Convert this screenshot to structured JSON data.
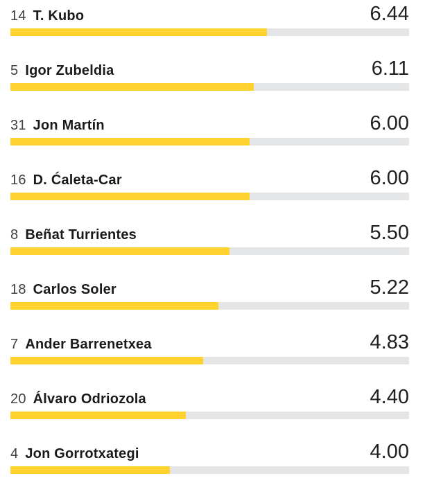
{
  "colors": {
    "bar_fill": "#ffd230",
    "bar_track": "#e4e5e7",
    "name_text": "#1a1a1a",
    "number_text": "#404040",
    "rating_text": "#202020",
    "background": "#ffffff"
  },
  "chart_data": {
    "type": "bar",
    "orientation": "horizontal",
    "title": "",
    "value_max": 10,
    "grid": false,
    "legend": false,
    "categories": [
      "T. Kubo",
      "Igor Zubeldia",
      "Jon Martín",
      "D. Ćaleta-Car",
      "Beñat Turrientes",
      "Carlos Soler",
      "Ander Barrenetxea",
      "Álvaro Odriozola",
      "Jon Gorrotxategi"
    ],
    "values": [
      6.44,
      6.11,
      6.0,
      6.0,
      5.5,
      5.22,
      4.83,
      4.4,
      4.0
    ],
    "players": [
      {
        "shirt_number": "14",
        "name": "T. Kubo",
        "rating": "6.44",
        "rating_value": 6.44
      },
      {
        "shirt_number": "5",
        "name": "Igor Zubeldia",
        "rating": "6.11",
        "rating_value": 6.11
      },
      {
        "shirt_number": "31",
        "name": "Jon Martín",
        "rating": "6.00",
        "rating_value": 6.0
      },
      {
        "shirt_number": "16",
        "name": "D. Ćaleta-Car",
        "rating": "6.00",
        "rating_value": 6.0
      },
      {
        "shirt_number": "8",
        "name": "Beñat Turrientes",
        "rating": "5.50",
        "rating_value": 5.5
      },
      {
        "shirt_number": "18",
        "name": "Carlos Soler",
        "rating": "5.22",
        "rating_value": 5.22
      },
      {
        "shirt_number": "7",
        "name": "Ander Barrenetxea",
        "rating": "4.83",
        "rating_value": 4.83
      },
      {
        "shirt_number": "20",
        "name": "Álvaro Odriozola",
        "rating": "4.40",
        "rating_value": 4.4
      },
      {
        "shirt_number": "4",
        "name": "Jon Gorrotxategi",
        "rating": "4.00",
        "rating_value": 4.0
      }
    ]
  }
}
